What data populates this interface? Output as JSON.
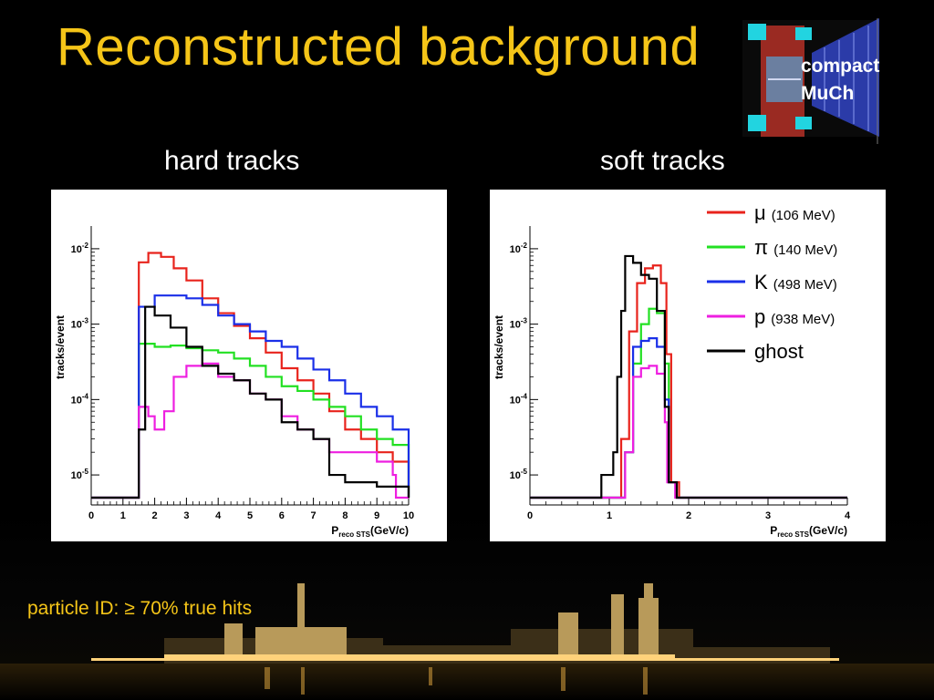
{
  "slide": {
    "title": "Reconstructed background",
    "logo_line1": "compact",
    "logo_line2": "MuCh",
    "footnote": "particle ID: ≥ 70% true hits"
  },
  "colors": {
    "title": "#f5c518",
    "mu": "#e8231c",
    "pi": "#22e022",
    "K": "#1a2fe8",
    "p": "#ee1fe0",
    "ghost": "#000000"
  },
  "chart_data": [
    {
      "type": "histogram",
      "title": "hard tracks",
      "ylabel": "tracks/event",
      "xlabel_main": "P",
      "xlabel_sub": "reco STS",
      "xlabel_unit": "(GeV/c)",
      "y_scale": "log",
      "xlim": [
        0,
        10
      ],
      "ylim": [
        4e-06,
        0.02
      ],
      "x_ticks": [
        "0",
        "1",
        "2",
        "3",
        "4",
        "5",
        "6",
        "7",
        "8",
        "9",
        "10"
      ],
      "y_ticks": [
        {
          "base": "10",
          "exp": "-2",
          "value": 0.01
        },
        {
          "base": "10",
          "exp": "-3",
          "value": 0.001
        },
        {
          "base": "10",
          "exp": "-4",
          "value": 0.0001
        },
        {
          "base": "10",
          "exp": "-5",
          "value": 1e-05
        }
      ],
      "floor_value": 5e-06,
      "series": [
        {
          "key": "mu",
          "points": [
            [
              1.5,
              0.0066
            ],
            [
              1.8,
              0.0088
            ],
            [
              2.2,
              0.0078
            ],
            [
              2.6,
              0.0055
            ],
            [
              3.0,
              0.0038
            ],
            [
              3.5,
              0.0022
            ],
            [
              4.0,
              0.0014
            ],
            [
              4.5,
              0.00095
            ],
            [
              5.0,
              0.00065
            ],
            [
              5.5,
              0.00042
            ],
            [
              6.0,
              0.00026
            ],
            [
              6.5,
              0.00018
            ],
            [
              7.0,
              0.00012
            ],
            [
              7.5,
              7e-05
            ],
            [
              8.0,
              4e-05
            ],
            [
              8.5,
              3e-05
            ],
            [
              9.0,
              2e-05
            ],
            [
              9.5,
              1.5e-05
            ],
            [
              10.0,
              1e-05
            ]
          ]
        },
        {
          "key": "pi",
          "points": [
            [
              1.5,
              0.00055
            ],
            [
              2.0,
              0.0005
            ],
            [
              2.5,
              0.00052
            ],
            [
              3.0,
              0.00048
            ],
            [
              3.5,
              0.00045
            ],
            [
              4.0,
              0.00042
            ],
            [
              4.5,
              0.00035
            ],
            [
              5.0,
              0.00028
            ],
            [
              5.5,
              0.0002
            ],
            [
              6.0,
              0.00015
            ],
            [
              6.5,
              0.00013
            ],
            [
              7.0,
              0.0001
            ],
            [
              7.5,
              8e-05
            ],
            [
              8.0,
              6e-05
            ],
            [
              8.5,
              4e-05
            ],
            [
              9.0,
              3e-05
            ],
            [
              9.5,
              2.5e-05
            ],
            [
              10.0,
              2e-05
            ]
          ]
        },
        {
          "key": "K",
          "points": [
            [
              1.5,
              0.0017
            ],
            [
              2.0,
              0.0024
            ],
            [
              2.5,
              0.0024
            ],
            [
              3.0,
              0.0022
            ],
            [
              3.5,
              0.0018
            ],
            [
              4.0,
              0.0013
            ],
            [
              4.5,
              0.001
            ],
            [
              5.0,
              0.0008
            ],
            [
              5.5,
              0.0006
            ],
            [
              6.0,
              0.0005
            ],
            [
              6.5,
              0.00035
            ],
            [
              7.0,
              0.00025
            ],
            [
              7.5,
              0.00018
            ],
            [
              8.0,
              0.00012
            ],
            [
              8.5,
              8e-05
            ],
            [
              9.0,
              6e-05
            ],
            [
              9.5,
              4e-05
            ],
            [
              10.0,
              3e-05
            ]
          ]
        },
        {
          "key": "p",
          "points": [
            [
              1.5,
              8e-05
            ],
            [
              1.8,
              6e-05
            ],
            [
              2.0,
              4e-05
            ],
            [
              2.3,
              7e-05
            ],
            [
              2.6,
              0.0002
            ],
            [
              3.0,
              0.00028
            ],
            [
              3.5,
              0.0003
            ],
            [
              4.0,
              0.0002
            ],
            [
              4.5,
              0.00018
            ],
            [
              5.0,
              0.00012
            ],
            [
              5.5,
              0.0001
            ],
            [
              6.0,
              6e-05
            ],
            [
              6.5,
              4e-05
            ],
            [
              7.0,
              3e-05
            ],
            [
              7.5,
              2e-05
            ],
            [
              8.0,
              2e-05
            ],
            [
              8.5,
              2e-05
            ],
            [
              9.0,
              1.5e-05
            ],
            [
              9.5,
              1e-05
            ]
          ]
        },
        {
          "key": "ghost",
          "points": [
            [
              1.5,
              4e-05
            ],
            [
              1.7,
              0.0017
            ],
            [
              2.0,
              0.0013
            ],
            [
              2.5,
              0.0009
            ],
            [
              3.0,
              0.0005
            ],
            [
              3.5,
              0.00028
            ],
            [
              4.0,
              0.00022
            ],
            [
              4.5,
              0.00018
            ],
            [
              5.0,
              0.00012
            ],
            [
              5.5,
              0.0001
            ],
            [
              6.0,
              5e-05
            ],
            [
              6.5,
              4e-05
            ],
            [
              7.0,
              3e-05
            ],
            [
              7.5,
              1e-05
            ],
            [
              8.0,
              8e-06
            ],
            [
              9.0,
              7e-06
            ],
            [
              10.0,
              6e-06
            ]
          ]
        }
      ]
    },
    {
      "type": "histogram",
      "title": "soft tracks",
      "ylabel": "tracks/event",
      "xlabel_main": "P",
      "xlabel_sub": "reco STS",
      "xlabel_unit": "(GeV/c)",
      "y_scale": "log",
      "xlim": [
        0,
        4
      ],
      "ylim": [
        4e-06,
        0.02
      ],
      "x_ticks": [
        "0",
        "1",
        "2",
        "3",
        "4"
      ],
      "y_ticks": [
        {
          "base": "10",
          "exp": "-2",
          "value": 0.01
        },
        {
          "base": "10",
          "exp": "-3",
          "value": 0.001
        },
        {
          "base": "10",
          "exp": "-4",
          "value": 0.0001
        },
        {
          "base": "10",
          "exp": "-5",
          "value": 1e-05
        }
      ],
      "floor_value": 5e-06,
      "series": [
        {
          "key": "mu",
          "points": [
            [
              1.15,
              3e-05
            ],
            [
              1.25,
              0.0008
            ],
            [
              1.35,
              0.0035
            ],
            [
              1.45,
              0.0055
            ],
            [
              1.55,
              0.006
            ],
            [
              1.65,
              0.0035
            ],
            [
              1.72,
              0.0004
            ],
            [
              1.78,
              8e-06
            ]
          ]
        },
        {
          "key": "pi",
          "points": [
            [
              1.2,
              2e-05
            ],
            [
              1.3,
              0.0003
            ],
            [
              1.4,
              0.001
            ],
            [
              1.5,
              0.0016
            ],
            [
              1.6,
              0.0014
            ],
            [
              1.7,
              0.0003
            ],
            [
              1.75,
              8e-06
            ]
          ]
        },
        {
          "key": "K",
          "points": [
            [
              1.2,
              2e-05
            ],
            [
              1.3,
              0.0005
            ],
            [
              1.4,
              0.0006
            ],
            [
              1.5,
              0.00065
            ],
            [
              1.6,
              0.0005
            ],
            [
              1.7,
              0.0001
            ],
            [
              1.75,
              8e-06
            ]
          ]
        },
        {
          "key": "p",
          "points": [
            [
              1.2,
              2e-05
            ],
            [
              1.3,
              0.0002
            ],
            [
              1.4,
              0.00026
            ],
            [
              1.5,
              0.00028
            ],
            [
              1.6,
              0.00022
            ],
            [
              1.7,
              5e-05
            ],
            [
              1.73,
              8e-06
            ]
          ]
        },
        {
          "key": "ghost",
          "points": [
            [
              0.9,
              1e-05
            ],
            [
              1.05,
              2e-05
            ],
            [
              1.1,
              0.0002
            ],
            [
              1.15,
              0.0015
            ],
            [
              1.2,
              0.008
            ],
            [
              1.3,
              0.0065
            ],
            [
              1.4,
              0.0045
            ],
            [
              1.5,
              0.004
            ],
            [
              1.6,
              0.0015
            ],
            [
              1.7,
              8e-05
            ],
            [
              1.75,
              8e-06
            ]
          ]
        }
      ],
      "legend": [
        {
          "key": "mu",
          "label": "μ",
          "mass": "(106 MeV)"
        },
        {
          "key": "pi",
          "label": "π",
          "mass": "(140 MeV)"
        },
        {
          "key": "K",
          "label": "K",
          "mass": "(498 MeV)"
        },
        {
          "key": "p",
          "label": "p",
          "mass": "(938 MeV)"
        },
        {
          "key": "ghost",
          "label": "ghost",
          "mass": ""
        }
      ],
      "legend_position": "top-right"
    }
  ]
}
